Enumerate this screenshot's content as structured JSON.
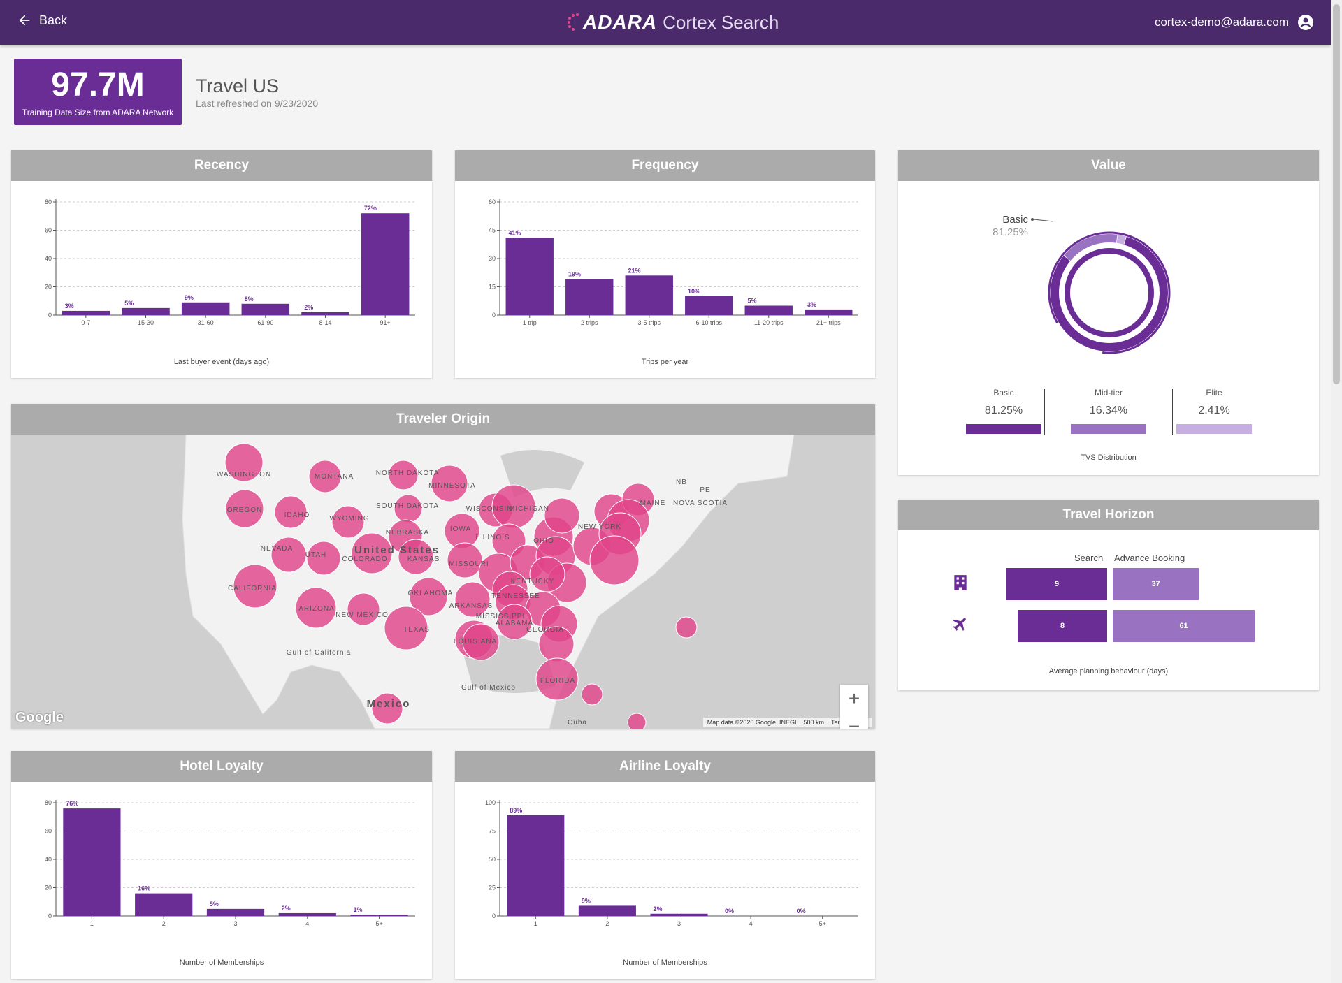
{
  "header": {
    "back_label": "Back",
    "brand": "ADARA",
    "product": "Cortex Search",
    "user_email": "cortex-demo@adara.com"
  },
  "summary": {
    "stat_value": "97.7M",
    "stat_label": "Training Data Size from ADARA Network",
    "title": "Travel US",
    "refreshed": "Last refreshed on 9/23/2020"
  },
  "cards": {
    "recency": "Recency",
    "frequency": "Frequency",
    "value": "Value",
    "traveler_origin": "Traveler Origin",
    "travel_horizon": "Travel Horizon",
    "hotel_loyalty": "Hotel Loyalty",
    "airline_loyalty": "Airline Loyalty"
  },
  "colors": {
    "accent": "#6a2d96",
    "header": "#4a2a6b",
    "card_header": "#ababab",
    "mid_purple": "#9a72c2",
    "light_purple": "#c7aee0",
    "map_bubble": "#e0468a"
  },
  "chart_data": [
    {
      "id": "recency",
      "type": "bar",
      "categories": [
        "0-7",
        "15-30",
        "31-60",
        "61-90",
        "8-14",
        "91+"
      ],
      "values": [
        3,
        5,
        9,
        8,
        2,
        72
      ],
      "labels": [
        "3%",
        "5%",
        "9%",
        "8%",
        "2%",
        "72%"
      ],
      "yticks": [
        "0",
        "20",
        "40",
        "60",
        "80"
      ],
      "ylim": [
        0,
        80
      ],
      "xlabel": "Last buyer event (days ago)",
      "grid": true
    },
    {
      "id": "frequency",
      "type": "bar",
      "categories": [
        "1 trip",
        "2 trips",
        "3-5 trips",
        "6-10 trips",
        "11-20 trips",
        "21+ trips"
      ],
      "values": [
        41,
        19,
        21,
        10,
        5,
        3
      ],
      "labels": [
        "41%",
        "19%",
        "21%",
        "10%",
        "5%",
        "3%"
      ],
      "yticks": [
        "0",
        "15",
        "30",
        "45",
        "60"
      ],
      "ylim": [
        0,
        60
      ],
      "xlabel": "Trips per year",
      "grid": true
    },
    {
      "id": "value",
      "type": "pie",
      "slices": [
        {
          "name": "Basic",
          "value": 81.25,
          "label": "81.25%",
          "color": "#6a2d96"
        },
        {
          "name": "Mid-tier",
          "value": 16.34,
          "label": "16.34%",
          "color": "#9a72c2"
        },
        {
          "name": "Elite",
          "value": 2.41,
          "label": "2.41%",
          "color": "#c7aee0"
        }
      ],
      "callout_name": "Basic",
      "callout_value": "81.25%",
      "caption": "TVS Distribution"
    },
    {
      "id": "travel_horizon",
      "type": "bar",
      "series": [
        {
          "name": "Search",
          "values": [
            9,
            8
          ],
          "labels": [
            "9",
            "8"
          ]
        },
        {
          "name": "Advance Booking",
          "values": [
            37,
            61
          ],
          "labels": [
            "37",
            "61"
          ]
        }
      ],
      "categories": [
        "hotel",
        "flight"
      ],
      "xlabel": "Average planning behaviour (days)"
    },
    {
      "id": "hotel_loyalty",
      "type": "bar",
      "categories": [
        "1",
        "2",
        "3",
        "4",
        "5+"
      ],
      "values": [
        76,
        16,
        5,
        2,
        1
      ],
      "labels": [
        "76%",
        "16%",
        "5%",
        "2%",
        "1%"
      ],
      "yticks": [
        "0",
        "20",
        "40",
        "60",
        "80"
      ],
      "ylim": [
        0,
        80
      ],
      "xlabel": "Number of Memberships",
      "grid": true
    },
    {
      "id": "airline_loyalty",
      "type": "bar",
      "categories": [
        "1",
        "2",
        "3",
        "4",
        "5+"
      ],
      "values": [
        89,
        9,
        2,
        0,
        0
      ],
      "labels": [
        "89%",
        "9%",
        "2%",
        "0%",
        "0%"
      ],
      "yticks": [
        "0",
        "25",
        "50",
        "75",
        "100"
      ],
      "ylim": [
        0,
        100
      ],
      "xlabel": "Number of Memberships",
      "grid": true
    }
  ],
  "map": {
    "region_labels": [
      "WASHINGTON",
      "MONTANA",
      "NORTH DAKOTA",
      "MINNESOTA",
      "OREGON",
      "IDAHO",
      "WYOMING",
      "SOUTH DAKOTA",
      "WISCONSIN",
      "MICHIGAN",
      "NEBRASKA",
      "IOWA",
      "NEVADA",
      "UTAH",
      "United States",
      "COLORADO",
      "KANSAS",
      "ILLINOIS",
      "OHIO",
      "CALIFORNIA",
      "MISSOURI",
      "KENTUCKY",
      "ARIZONA",
      "NEW MEXICO",
      "OKLAHOMA",
      "TENNESSEE",
      "ARKANSAS",
      "TEXAS",
      "MISSISSIPPI",
      "ALABAMA",
      "GEORGIA",
      "LOUISIANA",
      "FLORIDA",
      "Mexico",
      "MAINE",
      "NOVA SCOTIA",
      "NB",
      "PE",
      "NEW YORK",
      "Cuba",
      "Gulf of Mexico",
      "Gulf of California"
    ],
    "google": "Google",
    "map_data": "Map data ©2020 Google, INEGI",
    "scale": "500 km",
    "terms": "Terms of Use",
    "zoom_in": "+",
    "zoom_out": "−"
  }
}
